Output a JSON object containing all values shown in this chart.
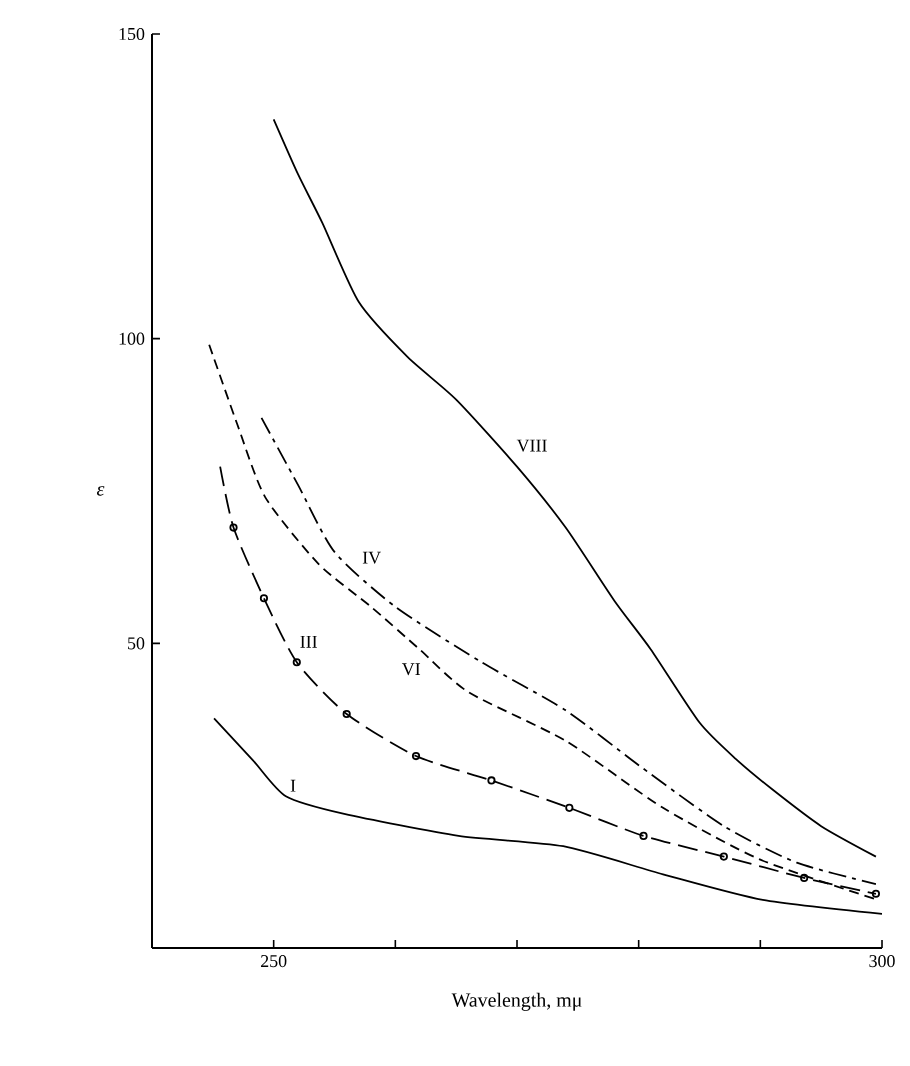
{
  "chart_data": {
    "type": "line",
    "xlabel": "Wavelength, mμ",
    "ylabel": "ε",
    "xlim": [
      240,
      300
    ],
    "ylim": [
      0,
      150
    ],
    "xticks": [
      250,
      {
        "value": 260,
        "label": null
      },
      {
        "value": 270,
        "label": null
      },
      {
        "value": 280,
        "label": null
      },
      {
        "value": 290,
        "label": null
      },
      300
    ],
    "yticks": [
      50,
      100,
      150
    ],
    "series": [
      {
        "name": "VIII",
        "color": "#000000",
        "line_style": "solid",
        "x": [
          250,
          252,
          254,
          257,
          261,
          265,
          270,
          274,
          278,
          281,
          285,
          288,
          291,
          295,
          299.5
        ],
        "values": [
          136,
          127,
          119,
          106,
          97,
          90,
          79,
          69,
          57,
          49,
          37,
          31,
          26,
          20,
          15
        ]
      },
      {
        "name": "IV",
        "color": "#000000",
        "line_style": "dashdotted",
        "x": [
          249,
          252,
          255,
          260,
          267,
          274,
          280,
          287,
          293,
          299.5
        ],
        "values": [
          87,
          76,
          65,
          56,
          47,
          39,
          30,
          20,
          14,
          10.5
        ]
      },
      {
        "name": "VI",
        "color": "#000000",
        "line_style": "dashed",
        "x": [
          244.7,
          247,
          249.3,
          253.7,
          258,
          262,
          266,
          274,
          282,
          290,
          299.5
        ],
        "values": [
          99,
          86,
          74,
          63,
          56,
          49,
          42,
          34,
          23,
          14.5,
          8
        ]
      },
      {
        "name": "III",
        "color": "#000000",
        "line_style": "loosely dashed",
        "marker": "circle",
        "x": [
          245.6,
          246.7,
          249.2,
          251.9,
          256,
          261.7,
          267.9,
          274.3,
          280.4,
          287,
          293.6,
          299.5
        ],
        "values": [
          79,
          69,
          57.4,
          46.9,
          38.4,
          31.5,
          27.5,
          23,
          18.4,
          15,
          11.5,
          8.9
        ]
      },
      {
        "name": "I",
        "color": "#000000",
        "line_style": "solid",
        "x": [
          245.1,
          248.3,
          251,
          255.8,
          265.2,
          273.8,
          282,
          290.2,
          300
        ],
        "values": [
          37.7,
          30.8,
          24.9,
          22,
          18.4,
          16.7,
          12.1,
          7.9,
          5.6
        ]
      }
    ]
  }
}
